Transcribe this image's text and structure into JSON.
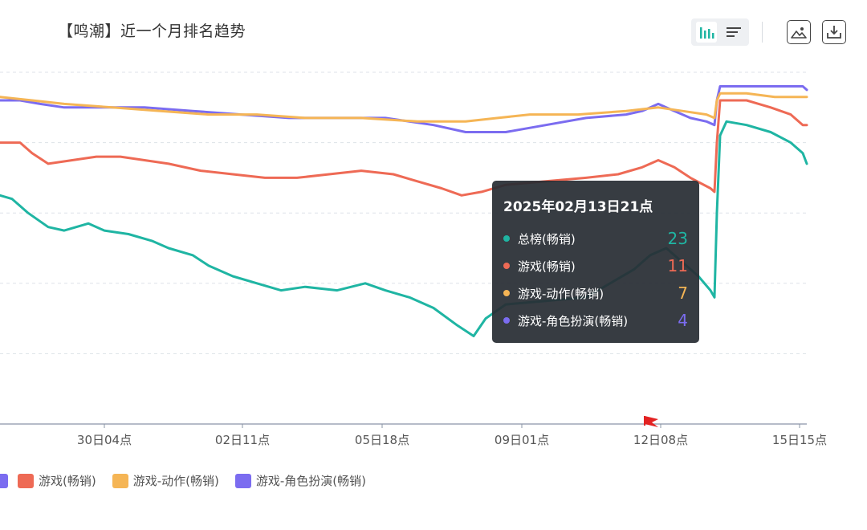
{
  "title": "【鸣潮】近一个月排名趋势",
  "toolbar": {
    "chart_view_icon": "bar-chart-icon",
    "list_view_icon": "list-icon",
    "save_image_icon": "image-icon",
    "download_icon": "download-icon"
  },
  "colors": {
    "total": "#1fb5a3",
    "game": "#ee6a55",
    "action": "#f5b555",
    "rpg": "#7b6cf0",
    "flag": "#e32222"
  },
  "tooltip": {
    "title": "2025年02月13日21点",
    "rows": [
      {
        "name": "总榜(畅销)",
        "value": "23",
        "color": "#1fb5a3"
      },
      {
        "name": "游戏(畅销)",
        "value": "11",
        "color": "#ee6a55"
      },
      {
        "name": "游戏-动作(畅销)",
        "value": "7",
        "color": "#f5b555"
      },
      {
        "name": "游戏-角色扮演(畅销)",
        "value": "4",
        "color": "#7b6cf0"
      }
    ]
  },
  "legend": [
    {
      "name": "游戏(畅销)",
      "color": "#ee6a55"
    },
    {
      "name": "游戏-动作(畅销)",
      "color": "#f5b555"
    },
    {
      "name": "游戏-角色扮演(畅销)",
      "color": "#7b6cf0"
    }
  ],
  "chart_data": {
    "type": "line",
    "y_inverted": true,
    "grid": true,
    "x_ticks": [
      "30日04点",
      "02日11点",
      "05日18点",
      "09日01点",
      "12日08点",
      "15日15点"
    ],
    "series": [
      {
        "name": "总榜(畅销)",
        "color": "#1fb5a3",
        "points": [
          [
            0,
            35
          ],
          [
            15,
            36
          ],
          [
            35,
            40
          ],
          [
            60,
            44
          ],
          [
            80,
            45
          ],
          [
            95,
            44
          ],
          [
            110,
            43
          ],
          [
            130,
            45
          ],
          [
            160,
            46
          ],
          [
            190,
            48
          ],
          [
            210,
            50
          ],
          [
            240,
            52
          ],
          [
            260,
            55
          ],
          [
            290,
            58
          ],
          [
            320,
            60
          ],
          [
            350,
            62
          ],
          [
            380,
            61
          ],
          [
            420,
            62
          ],
          [
            455,
            60
          ],
          [
            480,
            62
          ],
          [
            510,
            64
          ],
          [
            540,
            67
          ],
          [
            570,
            72
          ],
          [
            590,
            75
          ],
          [
            605,
            70
          ],
          [
            630,
            66
          ],
          [
            680,
            65
          ],
          [
            730,
            64
          ],
          [
            760,
            60
          ],
          [
            790,
            56
          ],
          [
            810,
            52
          ],
          [
            830,
            50
          ],
          [
            850,
            54
          ],
          [
            870,
            58
          ],
          [
            885,
            62
          ],
          [
            890,
            64
          ],
          [
            893,
            40
          ],
          [
            897,
            18
          ],
          [
            905,
            14
          ],
          [
            930,
            15
          ],
          [
            960,
            17
          ],
          [
            985,
            20
          ],
          [
            1000,
            23
          ],
          [
            1005,
            26
          ]
        ]
      },
      {
        "name": "游戏(畅销)",
        "color": "#ee6a55",
        "points": [
          [
            0,
            20
          ],
          [
            25,
            20
          ],
          [
            40,
            23
          ],
          [
            60,
            26
          ],
          [
            90,
            25
          ],
          [
            120,
            24
          ],
          [
            150,
            24
          ],
          [
            180,
            25
          ],
          [
            210,
            26
          ],
          [
            250,
            28
          ],
          [
            290,
            29
          ],
          [
            330,
            30
          ],
          [
            370,
            30
          ],
          [
            410,
            29
          ],
          [
            450,
            28
          ],
          [
            490,
            29
          ],
          [
            520,
            31
          ],
          [
            550,
            33
          ],
          [
            575,
            35
          ],
          [
            600,
            34
          ],
          [
            630,
            32
          ],
          [
            680,
            31
          ],
          [
            730,
            30
          ],
          [
            770,
            29
          ],
          [
            800,
            27
          ],
          [
            820,
            25
          ],
          [
            840,
            27
          ],
          [
            860,
            30
          ],
          [
            885,
            33
          ],
          [
            890,
            34
          ],
          [
            893,
            20
          ],
          [
            897,
            8
          ],
          [
            905,
            8
          ],
          [
            930,
            8
          ],
          [
            960,
            10
          ],
          [
            985,
            12
          ],
          [
            1000,
            15
          ],
          [
            1005,
            15
          ]
        ]
      },
      {
        "name": "游戏-动作(畅销)",
        "color": "#f5b555",
        "points": [
          [
            0,
            7
          ],
          [
            40,
            8
          ],
          [
            80,
            9
          ],
          [
            140,
            10
          ],
          [
            200,
            11
          ],
          [
            260,
            12
          ],
          [
            320,
            12
          ],
          [
            380,
            13
          ],
          [
            450,
            13
          ],
          [
            520,
            14
          ],
          [
            580,
            14
          ],
          [
            620,
            13
          ],
          [
            660,
            12
          ],
          [
            720,
            12
          ],
          [
            780,
            11
          ],
          [
            820,
            10
          ],
          [
            850,
            11
          ],
          [
            880,
            12
          ],
          [
            890,
            13
          ],
          [
            893,
            8
          ],
          [
            897,
            6
          ],
          [
            930,
            6
          ],
          [
            965,
            7
          ],
          [
            1000,
            7
          ],
          [
            1005,
            7
          ]
        ]
      },
      {
        "name": "游戏-角色扮演(畅销)",
        "color": "#7b6cf0",
        "points": [
          [
            0,
            8
          ],
          [
            25,
            8
          ],
          [
            50,
            9
          ],
          [
            80,
            10
          ],
          [
            130,
            10
          ],
          [
            180,
            10
          ],
          [
            240,
            11
          ],
          [
            300,
            12
          ],
          [
            360,
            13
          ],
          [
            420,
            13
          ],
          [
            480,
            13
          ],
          [
            540,
            15
          ],
          [
            580,
            17
          ],
          [
            630,
            17
          ],
          [
            680,
            15
          ],
          [
            730,
            13
          ],
          [
            780,
            12
          ],
          [
            800,
            11
          ],
          [
            820,
            9
          ],
          [
            840,
            11
          ],
          [
            860,
            13
          ],
          [
            880,
            14
          ],
          [
            890,
            15
          ],
          [
            893,
            8
          ],
          [
            897,
            4
          ],
          [
            930,
            4
          ],
          [
            965,
            4
          ],
          [
            1000,
            4
          ],
          [
            1005,
            5
          ]
        ]
      }
    ]
  }
}
